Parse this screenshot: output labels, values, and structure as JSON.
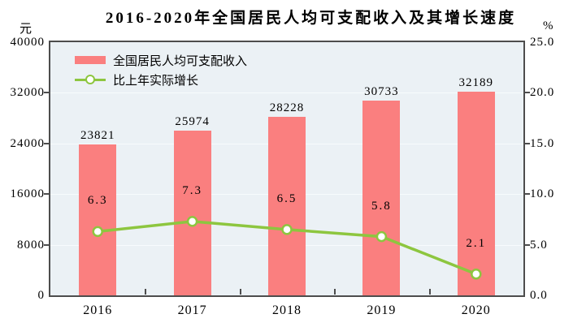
{
  "title": "2016-2020年全国居民人均可支配收入及其增长速度",
  "left_axis": {
    "unit": "元",
    "tick_labels": [
      "40000",
      "32000",
      "24000",
      "16000",
      "8000",
      "0"
    ],
    "max": 40000
  },
  "right_axis": {
    "unit": "%",
    "tick_labels": [
      "25.0",
      "20.0",
      "15.0",
      "10.0",
      "5.0",
      "0.0"
    ],
    "max": 25
  },
  "legend": [
    {
      "label": "全国居民人均可支配收入",
      "type": "bar",
      "color": "#FA7F7F"
    },
    {
      "label": "比上年实际增长",
      "type": "line",
      "color": "#8DC63F"
    }
  ],
  "colors": {
    "bar": "#FA7F7F",
    "line": "#8DC63F",
    "marker_fill": "#FFFFFF",
    "plot_background": "#EBF1F5",
    "gridline": "#F7FBFD",
    "axis_border": "#4D4D4D",
    "text": "#000000"
  },
  "chart_data": {
    "type": "bar",
    "subtype": "bar+line dual-axis",
    "title": "2016-2020年全国居民人均可支配收入及其增长速度",
    "categories": [
      "2016",
      "2017",
      "2018",
      "2019",
      "2020"
    ],
    "series": [
      {
        "name": "全国居民人均可支配收入",
        "type": "bar",
        "axis": "left",
        "unit": "元",
        "values": [
          23821,
          25974,
          28228,
          30733,
          32189
        ],
        "data_labels": [
          "23821",
          "25974",
          "28228",
          "30733",
          "32189"
        ],
        "color": "#FA7F7F"
      },
      {
        "name": "比上年实际增长",
        "type": "line",
        "axis": "right",
        "unit": "%",
        "values": [
          6.3,
          7.3,
          6.5,
          5.8,
          2.1
        ],
        "data_labels": [
          "6.3",
          "7.3",
          "6.5",
          "5.8",
          "2.1"
        ],
        "color": "#8DC63F"
      }
    ],
    "left_ylim": [
      0,
      40000
    ],
    "right_ylim": [
      0,
      25
    ],
    "left_tick_step": 8000,
    "right_tick_step": 5,
    "grid": true,
    "legend_position": "top-left"
  }
}
